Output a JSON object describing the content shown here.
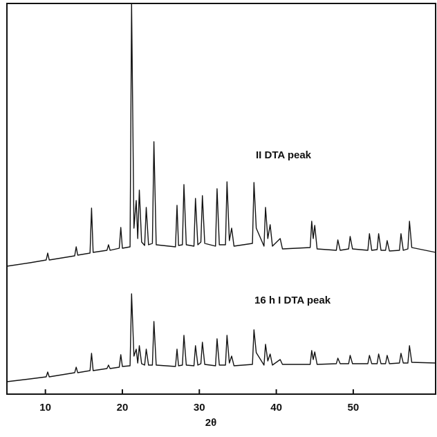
{
  "chart_data": {
    "type": "line",
    "xlabel": "2θ",
    "x": [
      5,
      8,
      10.1,
      10.3,
      10.5,
      13.8,
      14,
      14.2,
      15.8,
      16,
      16.2,
      18,
      18.2,
      18.4,
      19.6,
      19.8,
      20.0,
      21.0,
      21.2,
      21.5,
      21.8,
      22.0,
      22.2,
      22.5,
      22.9,
      23.1,
      23.4,
      23.9,
      24.1,
      24.4,
      26.9,
      27.1,
      27.3,
      27.8,
      28.0,
      28.3,
      29.3,
      29.5,
      29.8,
      30.2,
      30.4,
      30.7,
      32.1,
      32.3,
      32.6,
      33.4,
      33.6,
      33.9,
      34.2,
      34.5,
      36.9,
      37.1,
      37.4,
      38.4,
      38.6,
      38.9,
      39.2,
      39.5,
      40.5,
      40.8,
      44.4,
      44.6,
      44.8,
      45.0,
      45.3,
      47.8,
      48.0,
      48.3,
      49.4,
      49.6,
      49.9,
      51.9,
      52.1,
      52.4,
      53.1,
      53.3,
      53.6,
      54.2,
      54.4,
      54.7,
      56.0,
      56.2,
      56.5,
      57.1,
      57.3,
      57.6,
      60.7
    ],
    "series": [
      {
        "name": "II DTA  peak",
        "color": "#111111",
        "values": [
          185,
          190,
          194,
          204,
          194,
          200,
          213,
          201,
          204,
          269,
          205,
          208,
          216,
          208,
          211,
          241,
          211,
          213,
          565,
          240,
          280,
          225,
          295,
          220,
          215,
          270,
          216,
          218,
          365,
          216,
          213,
          273,
          215,
          216,
          303,
          216,
          214,
          283,
          216,
          220,
          287,
          218,
          214,
          297,
          216,
          216,
          307,
          222,
          240,
          214,
          218,
          306,
          240,
          214,
          270,
          225,
          245,
          214,
          225,
          210,
          212,
          250,
          225,
          244,
          210,
          208,
          223,
          208,
          210,
          228,
          210,
          208,
          232,
          208,
          209,
          232,
          208,
          208,
          222,
          207,
          208,
          232,
          208,
          210,
          250,
          212,
          205
        ]
      },
      {
        "name": "16 h   I DTA peak",
        "color": "#111111",
        "values": [
          18,
          22,
          25,
          32,
          25,
          31,
          39,
          31,
          34,
          59,
          34,
          37,
          42,
          37,
          39,
          57,
          40,
          41,
          145,
          55,
          65,
          45,
          70,
          44,
          42,
          65,
          42,
          42,
          105,
          42,
          40,
          65,
          41,
          42,
          85,
          42,
          41,
          70,
          42,
          44,
          75,
          43,
          41,
          80,
          42,
          42,
          85,
          45,
          55,
          41,
          43,
          93,
          60,
          42,
          72,
          48,
          58,
          42,
          50,
          43,
          43,
          63,
          50,
          61,
          43,
          44,
          52,
          44,
          44,
          56,
          44,
          44,
          56,
          44,
          44,
          58,
          44,
          44,
          56,
          44,
          45,
          59,
          45,
          45,
          70,
          46,
          45
        ]
      }
    ],
    "xlim": [
      5,
      60.7
    ],
    "xticks": [
      10,
      20,
      30,
      40,
      50
    ],
    "ylim": [
      0,
      565
    ]
  }
}
